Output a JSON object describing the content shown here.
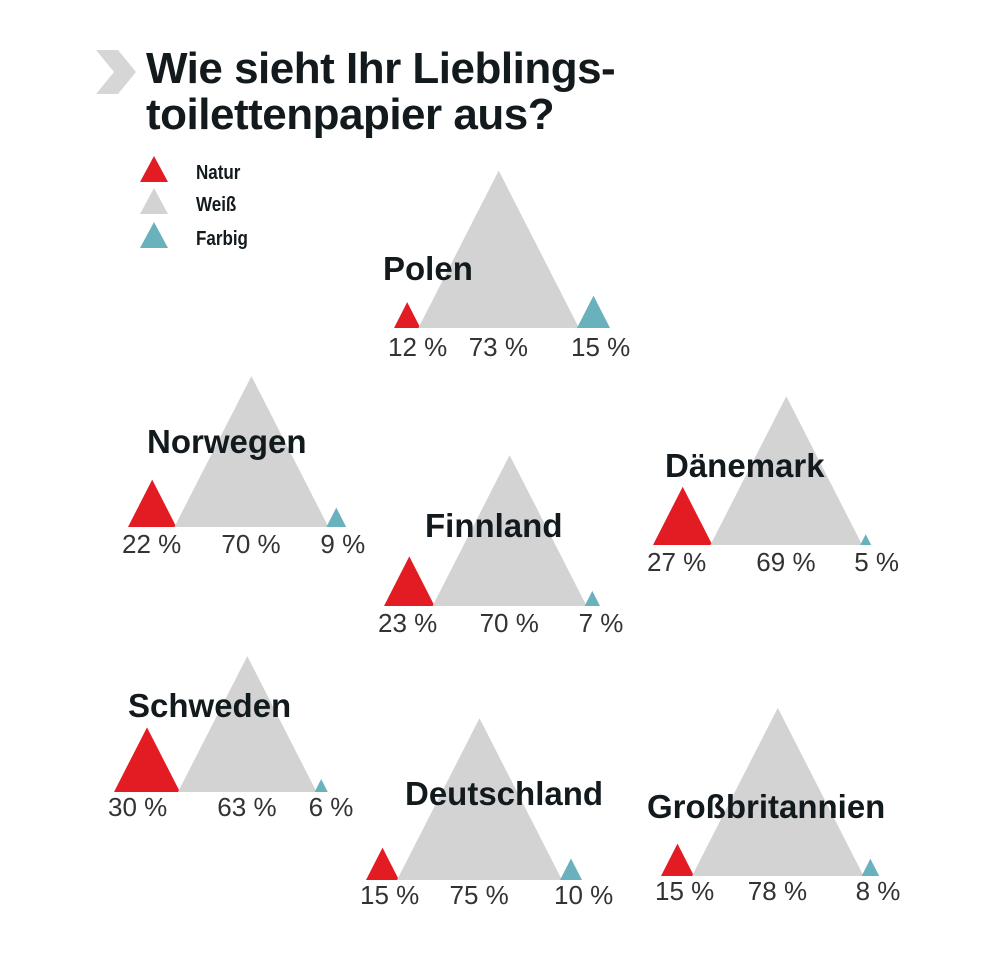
{
  "chart_data": {
    "type": "proportional-triangles",
    "title": "Wie sieht Ihr Lieblings-toilettenpapier aus?",
    "title_lines": [
      "Wie sieht Ihr Lieblings-",
      "toilettenpapier aus?"
    ],
    "unit": "%",
    "legend": [
      {
        "name": "Natur",
        "color": "#e31b23"
      },
      {
        "name": "Weiß",
        "color": "#d3d3d3"
      },
      {
        "name": "Farbig",
        "color": "#6ab1be"
      }
    ],
    "countries": [
      {
        "name": "Polen",
        "values": [
          12,
          73,
          15
        ]
      },
      {
        "name": "Norwegen",
        "values": [
          22,
          70,
          9
        ]
      },
      {
        "name": "Dänemark",
        "values": [
          27,
          69,
          5
        ]
      },
      {
        "name": "Finnland",
        "values": [
          23,
          70,
          7
        ]
      },
      {
        "name": "Schweden",
        "values": [
          30,
          63,
          6
        ]
      },
      {
        "name": "Deutschland",
        "values": [
          15,
          75,
          10
        ]
      },
      {
        "name": "Großbritannien",
        "values": [
          15,
          78,
          8
        ]
      }
    ]
  }
}
